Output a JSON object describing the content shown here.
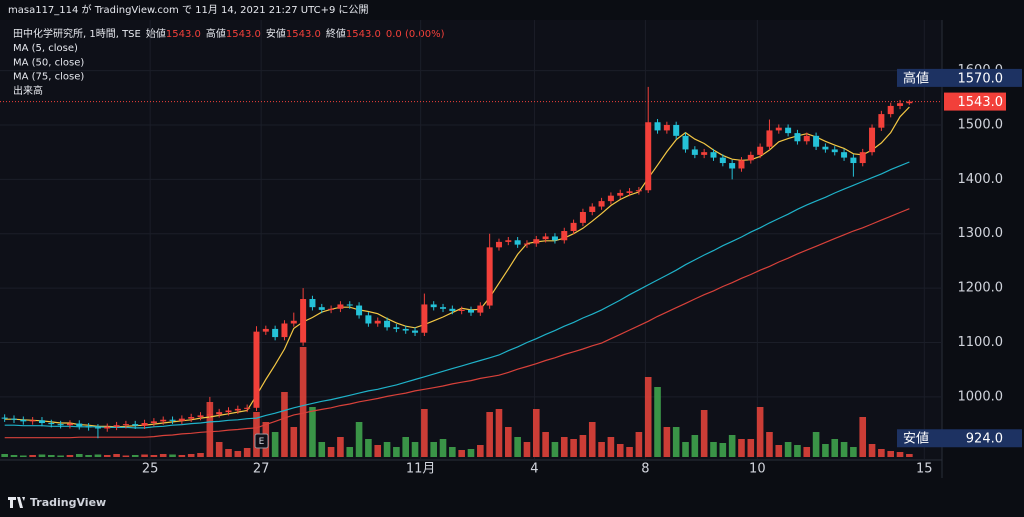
{
  "header": {
    "text": "masa117_114 が TradingView.com で 11月 14, 2021 21:27 UTC+9 に公開"
  },
  "chart_data": {
    "type": "candlestick",
    "legend": {
      "symbol": "田中化学研究所, 1時間, TSE",
      "fields": [
        {
          "label": "始値",
          "value": "1543.0"
        },
        {
          "label": "高値",
          "value": "1543.0"
        },
        {
          "label": "安値",
          "value": "1543.0"
        },
        {
          "label": "終値",
          "value": "1543.0"
        }
      ],
      "change": "0.0 (0.00%)"
    },
    "open": [
      962,
      960,
      958,
      955,
      957,
      952,
      950,
      948,
      951,
      946,
      944,
      942,
      945,
      948,
      950,
      947,
      952,
      955,
      958,
      956,
      960,
      963,
      966,
      968,
      972,
      975,
      978,
      980,
      1120,
      1125,
      1110,
      1135,
      1100,
      1180,
      1165,
      1160,
      1162,
      1170,
      1168,
      1150,
      1135,
      1140,
      1128,
      1125,
      1122,
      1118,
      1170,
      1165,
      1162,
      1158,
      1160,
      1155,
      1168,
      1275,
      1285,
      1288,
      1280,
      1282,
      1290,
      1295,
      1288,
      1305,
      1320,
      1340,
      1350,
      1360,
      1370,
      1375,
      1378,
      1380,
      1505,
      1490,
      1500,
      1480,
      1455,
      1445,
      1450,
      1440,
      1430,
      1420,
      1435,
      1445,
      1460,
      1490,
      1495,
      1485,
      1470,
      1480,
      1460,
      1455,
      1450,
      1440,
      1430,
      1450,
      1495,
      1520,
      1535,
      1540
    ],
    "high": [
      968,
      966,
      964,
      963,
      963,
      958,
      956,
      957,
      957,
      952,
      950,
      951,
      954,
      956,
      956,
      958,
      961,
      964,
      964,
      966,
      969,
      972,
      1000,
      978,
      981,
      984,
      986,
      1130,
      1131,
      1131,
      1141,
      1155,
      1200,
      1186,
      1171,
      1168,
      1176,
      1176,
      1174,
      1156,
      1146,
      1146,
      1134,
      1131,
      1128,
      1190,
      1176,
      1171,
      1168,
      1166,
      1166,
      1174,
      1300,
      1291,
      1294,
      1294,
      1288,
      1296,
      1301,
      1301,
      1311,
      1326,
      1346,
      1356,
      1366,
      1376,
      1381,
      1384,
      1386,
      1570,
      1511,
      1506,
      1506,
      1486,
      1461,
      1456,
      1456,
      1446,
      1436,
      1441,
      1451,
      1466,
      1510,
      1501,
      1501,
      1491,
      1486,
      1486,
      1466,
      1461,
      1456,
      1446,
      1456,
      1501,
      1526,
      1541,
      1546,
      1546
    ],
    "low": [
      954,
      952,
      949,
      949,
      946,
      944,
      942,
      942,
      940,
      938,
      924,
      936,
      939,
      942,
      941,
      941,
      946,
      949,
      950,
      950,
      954,
      957,
      960,
      962,
      966,
      969,
      972,
      974,
      1114,
      1104,
      1104,
      1129,
      1094,
      1159,
      1154,
      1154,
      1156,
      1162,
      1144,
      1129,
      1129,
      1122,
      1119,
      1116,
      1112,
      1112,
      1159,
      1156,
      1152,
      1152,
      1149,
      1149,
      1162,
      1269,
      1279,
      1274,
      1274,
      1276,
      1284,
      1282,
      1282,
      1299,
      1314,
      1334,
      1344,
      1354,
      1364,
      1369,
      1372,
      1375,
      1484,
      1484,
      1474,
      1449,
      1439,
      1439,
      1434,
      1424,
      1400,
      1414,
      1429,
      1439,
      1454,
      1484,
      1479,
      1464,
      1464,
      1454,
      1449,
      1444,
      1434,
      1405,
      1424,
      1444,
      1489,
      1514,
      1529,
      1537
    ],
    "close": [
      960,
      958,
      955,
      957,
      952,
      950,
      948,
      951,
      946,
      944,
      942,
      945,
      948,
      950,
      947,
      952,
      955,
      958,
      956,
      960,
      963,
      966,
      968,
      972,
      975,
      978,
      980,
      1120,
      1125,
      1110,
      1135,
      1140,
      1180,
      1165,
      1160,
      1162,
      1170,
      1168,
      1150,
      1135,
      1140,
      1128,
      1125,
      1122,
      1118,
      1170,
      1165,
      1162,
      1158,
      1160,
      1155,
      1168,
      1275,
      1285,
      1288,
      1280,
      1282,
      1290,
      1295,
      1288,
      1305,
      1320,
      1340,
      1350,
      1360,
      1370,
      1375,
      1378,
      1380,
      1505,
      1490,
      1500,
      1480,
      1455,
      1445,
      1450,
      1440,
      1430,
      1420,
      1435,
      1445,
      1460,
      1490,
      1495,
      1485,
      1470,
      1480,
      1460,
      1455,
      1450,
      1440,
      1430,
      1450,
      1495,
      1520,
      1535,
      1540,
      1543
    ],
    "up_color": "#f2403a",
    "down_color": "#25c2d8",
    "volume": {
      "name": "出来高",
      "up_color": "#e0423a",
      "down_color": "#3fa34d",
      "values": [
        300,
        200,
        150,
        200,
        250,
        200,
        150,
        200,
        300,
        200,
        250,
        200,
        300,
        150,
        200,
        250,
        200,
        300,
        250,
        200,
        300,
        400,
        5500,
        1500,
        800,
        600,
        900,
        4500,
        3500,
        2500,
        6500,
        3000,
        11000,
        5000,
        1500,
        1000,
        2000,
        1000,
        3500,
        1800,
        1200,
        1500,
        1000,
        2000,
        1500,
        4800,
        1500,
        1800,
        1000,
        700,
        800,
        1200,
        4500,
        4800,
        3000,
        2000,
        1500,
        4800,
        2500,
        1500,
        2000,
        1800,
        2200,
        3500,
        1500,
        2000,
        1300,
        1000,
        2500,
        8000,
        7000,
        3000,
        3000,
        1500,
        2200,
        4700,
        1500,
        1400,
        2200,
        1800,
        1800,
        5000,
        2500,
        1200,
        1500,
        1200,
        1000,
        2500,
        1300,
        1800,
        1500,
        1000,
        4000,
        1300,
        800,
        600,
        500,
        300
      ]
    },
    "indicators": [
      {
        "name": "MA (5, close)",
        "color": "#f3c744",
        "values": [
          959,
          959,
          958,
          957,
          956,
          954,
          952,
          952,
          949,
          948,
          946,
          946,
          945,
          946,
          947,
          948,
          950,
          952,
          954,
          956,
          958,
          961,
          963,
          966,
          969,
          972,
          975,
          1003,
          1032,
          1059,
          1088,
          1126,
          1138,
          1146,
          1156,
          1161,
          1165,
          1165,
          1160,
          1157,
          1153,
          1144,
          1136,
          1130,
          1127,
          1133,
          1140,
          1147,
          1155,
          1163,
          1160,
          1161,
          1183,
          1209,
          1235,
          1262,
          1282,
          1285,
          1287,
          1287,
          1292,
          1300,
          1310,
          1323,
          1337,
          1352,
          1363,
          1371,
          1377,
          1402,
          1426,
          1451,
          1473,
          1486,
          1474,
          1466,
          1454,
          1444,
          1437,
          1435,
          1436,
          1442,
          1454,
          1469,
          1475,
          1480,
          1484,
          1478,
          1470,
          1463,
          1457,
          1447,
          1445,
          1454,
          1467,
          1486,
          1515,
          1533
        ]
      },
      {
        "name": "MA (50, close)",
        "color": "#1fb2c9",
        "values": [
          948,
          948,
          947,
          947,
          947,
          946,
          946,
          946,
          945,
          945,
          945,
          944,
          944,
          944,
          943,
          943,
          945,
          946,
          948,
          949,
          951,
          952,
          954,
          955,
          957,
          958,
          960,
          961,
          966,
          970,
          975,
          980,
          984,
          988,
          992,
          995,
          999,
          1003,
          1007,
          1011,
          1014,
          1018,
          1022,
          1027,
          1032,
          1037,
          1042,
          1047,
          1052,
          1057,
          1062,
          1067,
          1072,
          1077,
          1085,
          1092,
          1100,
          1107,
          1115,
          1122,
          1130,
          1137,
          1145,
          1152,
          1160,
          1169,
          1178,
          1188,
          1197,
          1206,
          1215,
          1224,
          1233,
          1243,
          1252,
          1261,
          1269,
          1278,
          1286,
          1294,
          1303,
          1311,
          1320,
          1328,
          1336,
          1345,
          1353,
          1360,
          1367,
          1375,
          1382,
          1389,
          1396,
          1403,
          1410,
          1418,
          1425,
          1432
        ]
      },
      {
        "name": "MA (75, close)",
        "color": "#d8413a",
        "values": [
          925,
          925,
          925,
          925,
          925,
          925,
          925,
          925,
          926,
          926,
          926,
          926,
          926,
          926,
          926,
          926,
          927,
          929,
          930,
          932,
          933,
          935,
          936,
          937,
          939,
          940,
          942,
          943,
          949,
          955,
          961,
          967,
          970,
          974,
          977,
          980,
          984,
          987,
          991,
          994,
          997,
          1001,
          1004,
          1007,
          1011,
          1014,
          1017,
          1020,
          1024,
          1027,
          1030,
          1034,
          1037,
          1040,
          1045,
          1051,
          1056,
          1061,
          1067,
          1072,
          1078,
          1083,
          1088,
          1094,
          1099,
          1107,
          1115,
          1123,
          1131,
          1139,
          1148,
          1156,
          1164,
          1172,
          1180,
          1188,
          1195,
          1203,
          1210,
          1218,
          1225,
          1233,
          1240,
          1248,
          1255,
          1263,
          1270,
          1277,
          1284,
          1291,
          1298,
          1305,
          1311,
          1318,
          1325,
          1332,
          1339,
          1346
        ]
      }
    ],
    "xlim": [
      -0.5,
      100.5
    ],
    "xticks": [
      {
        "value": 15.6,
        "label": "25"
      },
      {
        "value": 27.5,
        "label": "27"
      },
      {
        "value": 44.6,
        "label": "11月"
      },
      {
        "value": 56.8,
        "label": "4"
      },
      {
        "value": 68.7,
        "label": "8"
      },
      {
        "value": 80.7,
        "label": "10"
      },
      {
        "value": 98.6,
        "label": "15"
      }
    ],
    "ylim": [
      884,
      1693
    ],
    "yticks": [
      {
        "value": 1000,
        "label": "1000.0"
      },
      {
        "value": 1100,
        "label": "1100.0"
      },
      {
        "value": 1200,
        "label": "1200.0"
      },
      {
        "value": 1300,
        "label": "1300.0"
      },
      {
        "value": 1400,
        "label": "1400.0"
      },
      {
        "value": 1500,
        "label": "1500.0"
      },
      {
        "value": 1600,
        "label": "1600.0"
      }
    ],
    "grid": true,
    "price_labels": [
      {
        "label": "高値",
        "value": 1570,
        "value_label": "1570.0",
        "color": "#1d3262"
      },
      {
        "value": 1543,
        "value_label": "1543.0",
        "color": "#f2403a",
        "line": true
      },
      {
        "label": "安値",
        "value": 924,
        "value_label": "924.0",
        "color": "#1d3262"
      }
    ],
    "events": [
      "E"
    ]
  },
  "footer": {
    "brand": "TradingView"
  }
}
